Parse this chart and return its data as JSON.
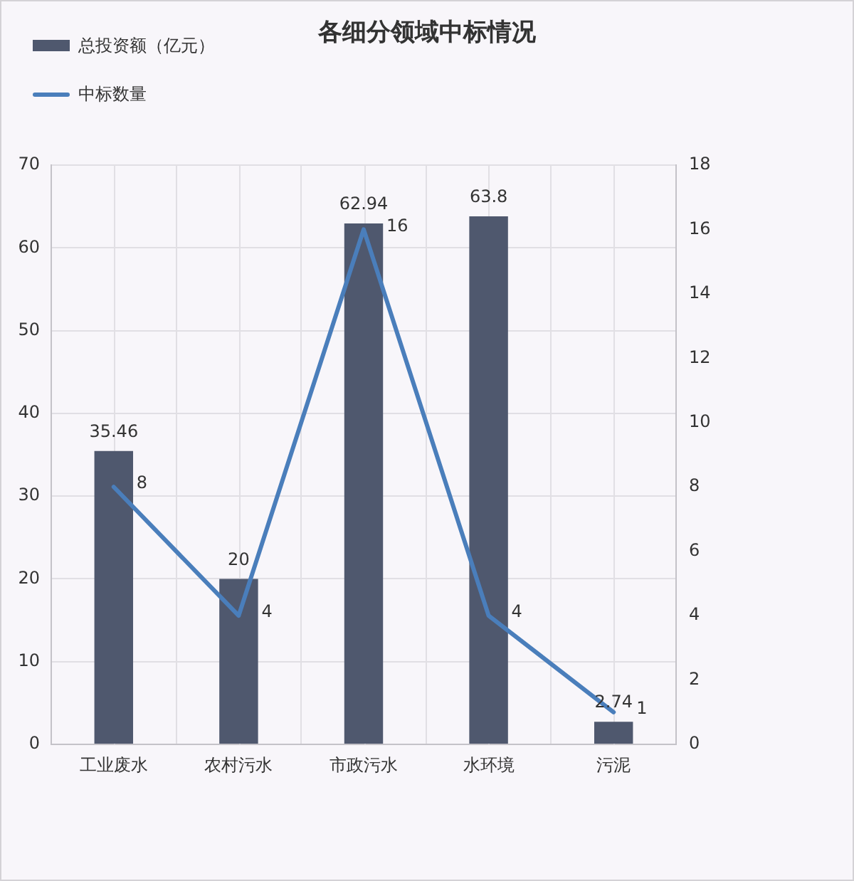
{
  "chart_data": {
    "type": "bar",
    "title": "各细分领域中标情况",
    "categories": [
      "工业废水",
      "农村污水",
      "市政污水",
      "水环境",
      "污泥"
    ],
    "series": [
      {
        "name": "总投资额（亿元）",
        "color": "#4f586e",
        "values": [
          35.46,
          20,
          62.94,
          63.8,
          2.74
        ]
      },
      {
        "name": "中标数量",
        "type": "line",
        "axis": "y2",
        "color": "#4a7ebb",
        "values": [
          8,
          4,
          16,
          4,
          1
        ]
      }
    ],
    "ylim": [
      0,
      70
    ],
    "yticks": [
      0,
      10,
      20,
      30,
      40,
      50,
      60,
      70
    ],
    "y2lim": [
      0,
      18
    ],
    "y2ticks": [
      0,
      2,
      4,
      6,
      8,
      10,
      12,
      14,
      16,
      18
    ],
    "grid": true,
    "legend": "top left",
    "marker": "none",
    "data_labels": true
  }
}
